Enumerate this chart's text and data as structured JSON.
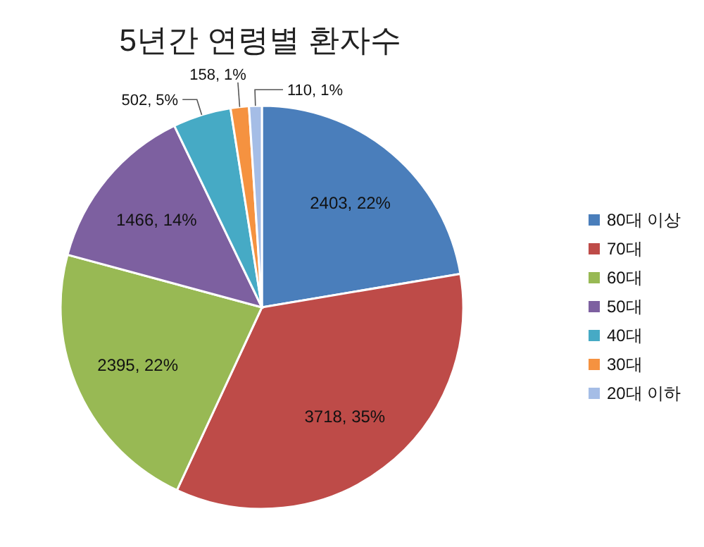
{
  "chart_data": {
    "type": "pie",
    "title": "5년간 연령별 환자수",
    "categories": [
      "80대 이상",
      "70대",
      "60대",
      "50대",
      "40대",
      "30대",
      "20대 이하"
    ],
    "values": [
      2403,
      3718,
      2395,
      1466,
      502,
      158,
      110
    ],
    "value_labels": [
      "2403, 22%",
      "3718, 35%",
      "2395, 22%",
      "1466, 14%",
      "502, 5%",
      "158, 1%",
      "110, 1%"
    ],
    "colors": [
      "#4a7ebb",
      "#be4b48",
      "#98b954",
      "#7d60a0",
      "#46aac5",
      "#f59240",
      "#a5bde6"
    ],
    "legend": "right"
  }
}
